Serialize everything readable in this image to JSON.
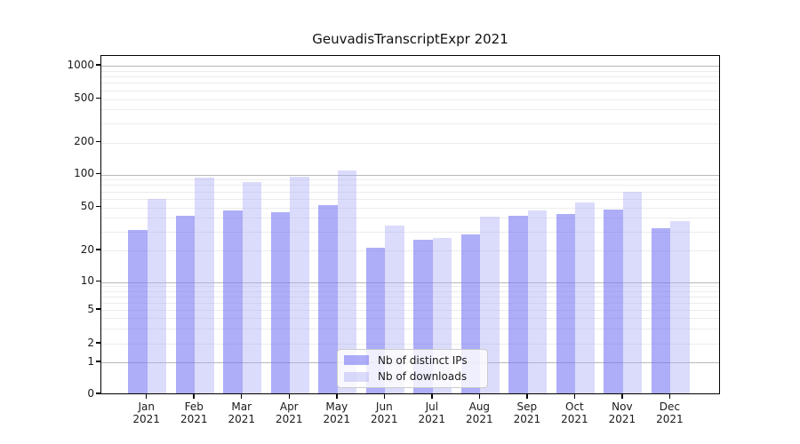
{
  "title": "GeuvadisTranscriptExpr 2021",
  "chart_data": {
    "type": "bar",
    "title": "GeuvadisTranscriptExpr 2021",
    "year": "2021",
    "months": [
      "Jan",
      "Feb",
      "Mar",
      "Apr",
      "May",
      "Jun",
      "Jul",
      "Aug",
      "Sep",
      "Oct",
      "Nov",
      "Dec"
    ],
    "series": [
      {
        "name": "Nb of distinct IPs",
        "color": "rgba(118,118,244,0.60)",
        "values": [
          31,
          42,
          47,
          45,
          52,
          21,
          25,
          28,
          42,
          43,
          48,
          32
        ]
      },
      {
        "name": "Nb of downloads",
        "color": "rgba(170,170,245,0.42)",
        "values": [
          60,
          93,
          85,
          95,
          110,
          34,
          26,
          41,
          47,
          55,
          70,
          37
        ]
      }
    ],
    "y_ticks": [
      0,
      1,
      2,
      5,
      10,
      20,
      50,
      100,
      200,
      500,
      1000
    ],
    "y_scale": "symlog",
    "ylim": [
      0,
      1200
    ],
    "grid": true,
    "legend_position": "lower center"
  },
  "colors": {
    "major_grid": "#b8b8b8",
    "minor_grid": "#ececec",
    "axis": "#000000",
    "background": "#ffffff"
  }
}
